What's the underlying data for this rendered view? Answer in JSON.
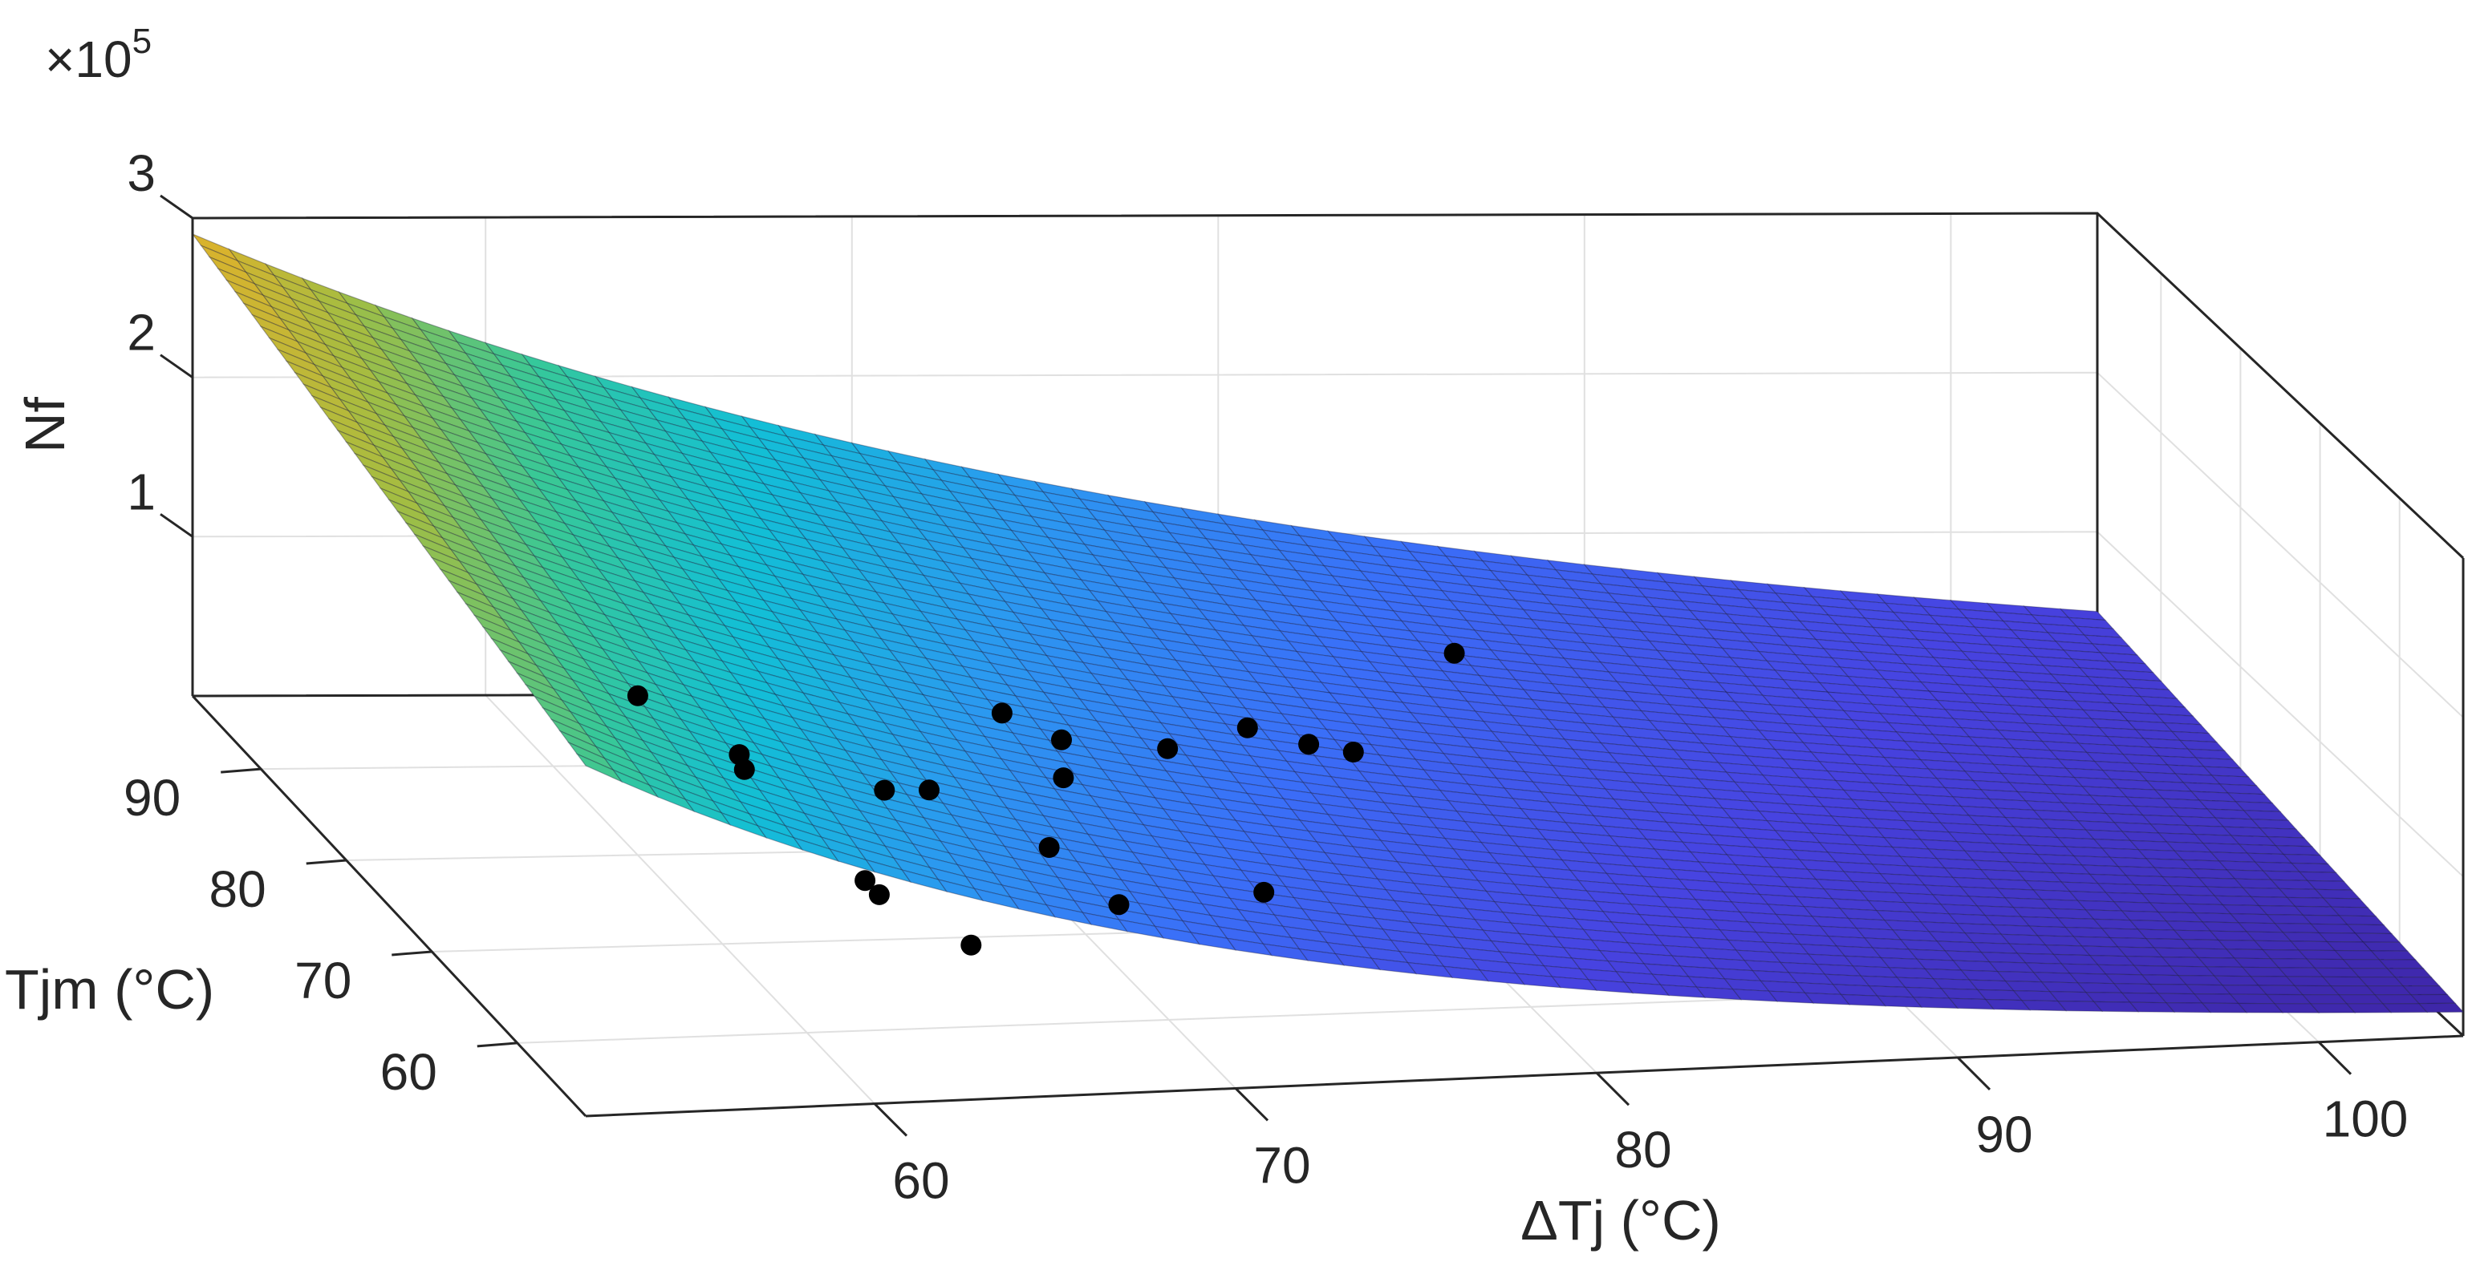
{
  "colors": {
    "background": "#ffffff",
    "box": "#262626",
    "grid": "#e0e0e0",
    "marker": "#000000",
    "colormap": [
      "#3e26a8",
      "#4743e1",
      "#3a6ff8",
      "#2b99f0",
      "#12bfd6",
      "#37c898",
      "#a3bd42",
      "#e1b12a"
    ]
  },
  "chart_data": {
    "type": "surface3d",
    "title": "",
    "xlabel": "ΔTj (°C)",
    "ylabel": "Tjm (°C)",
    "zlabel": "Nf",
    "z_exponent_base": "×10",
    "z_exponent_power": "5",
    "x_range": [
      52,
      104
    ],
    "y_range": [
      52,
      98
    ],
    "z_range": [
      0,
      300000
    ],
    "x_ticks": [
      60,
      70,
      80,
      90,
      100
    ],
    "y_ticks": [
      60,
      70,
      80,
      90
    ],
    "z_ticks": [
      1,
      2,
      3
    ],
    "x_tick_labels": [
      "60",
      "70",
      "80",
      "90",
      "100"
    ],
    "y_tick_labels": [
      "60",
      "70",
      "80",
      "90"
    ],
    "z_tick_labels": [
      "1",
      "2",
      "3"
    ],
    "grid": true,
    "colormap": "parula",
    "surface_model": {
      "description": "fitted lifetime surface Nf(ΔTj, Tjm)",
      "corner_values": {
        "dTj_52_Tjm_98": 290000,
        "dTj_52_Tjm_52": 220000,
        "dTj_104_Tjm_98": 50000,
        "dTj_104_Tjm_52": 15000
      },
      "grid_resolution": [
        52,
        46
      ]
    },
    "scatter_points": [
      {
        "dTj": 60,
        "Tjm": 68,
        "Nf": 130000
      },
      {
        "dTj": 60,
        "Tjm": 80,
        "Nf": 100000
      },
      {
        "dTj": 62,
        "Tjm": 76,
        "Nf": 75000
      },
      {
        "dTj": 63,
        "Tjm": 66,
        "Nf": 60000
      },
      {
        "dTj": 62,
        "Tjm": 60,
        "Nf": 85000
      },
      {
        "dTj": 64,
        "Tjm": 68,
        "Nf": 105000
      },
      {
        "dTj": 65,
        "Tjm": 67,
        "Nf": 110000
      },
      {
        "dTj": 65,
        "Tjm": 62,
        "Nf": 40000
      },
      {
        "dTj": 69,
        "Tjm": 70,
        "Nf": 55000
      },
      {
        "dTj": 70,
        "Tjm": 66,
        "Nf": 40000
      },
      {
        "dTj": 70,
        "Tjm": 80,
        "Nf": 85000
      },
      {
        "dTj": 71,
        "Tjm": 77,
        "Nf": 60000
      },
      {
        "dTj": 73,
        "Tjm": 86,
        "Nf": 35000
      },
      {
        "dTj": 74,
        "Tjm": 66,
        "Nf": 45000
      },
      {
        "dTj": 75,
        "Tjm": 82,
        "Nf": 50000
      },
      {
        "dTj": 79,
        "Tjm": 90,
        "Nf": 20000
      },
      {
        "dTj": 80,
        "Tjm": 87,
        "Nf": 25000
      },
      {
        "dTj": 81,
        "Tjm": 86,
        "Nf": 25000
      },
      {
        "dTj": 86,
        "Tjm": 96,
        "Nf": 35000
      }
    ]
  }
}
